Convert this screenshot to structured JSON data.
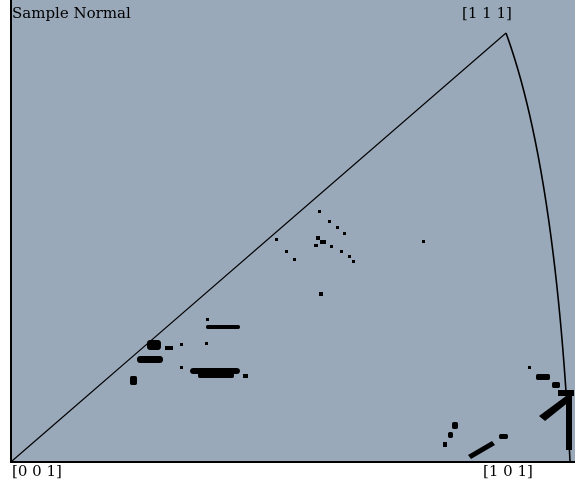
{
  "plot": {
    "title": "Sample Normal",
    "poles": {
      "p111": "[1 1 1]",
      "p001": "[0 0 1]",
      "p101": "[1 0 1]"
    }
  },
  "colors": {
    "background": "#9aa9ba",
    "frame": "#000000",
    "points": "#000000",
    "outer": "#ffffff"
  }
}
